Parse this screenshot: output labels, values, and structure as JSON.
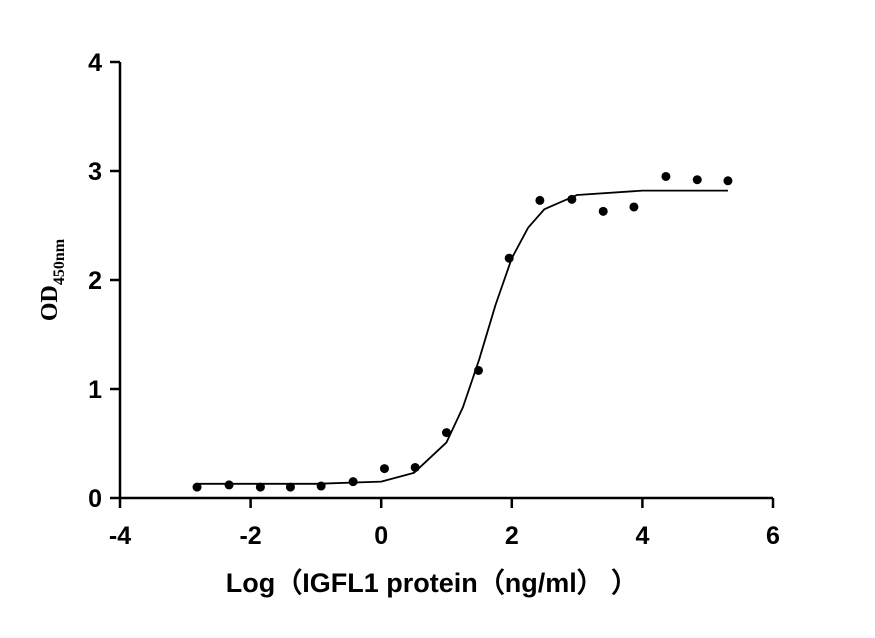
{
  "chart_data": {
    "type": "scatter",
    "y_label": "OD",
    "y_label_sub": "450nm",
    "x_label": "Log（IGFL1 protein（ng/ml） ）",
    "xlim": [
      -4,
      6
    ],
    "xticks": [
      -4,
      -2,
      0,
      2,
      4,
      6
    ],
    "ylim": [
      0,
      4
    ],
    "yticks": [
      0,
      1,
      2,
      3,
      4
    ],
    "series": [
      {
        "type": "scatter",
        "color": "#000000",
        "x": [
          -2.82,
          -2.33,
          -1.85,
          -1.39,
          -0.92,
          -0.43,
          0.05,
          0.52,
          1.0,
          1.49,
          1.96,
          2.43,
          2.92,
          3.4,
          3.87,
          4.36,
          4.84,
          5.31
        ],
        "values": [
          0.1,
          0.12,
          0.1,
          0.1,
          0.11,
          0.15,
          0.27,
          0.28,
          0.6,
          1.17,
          2.2,
          2.73,
          2.74,
          2.63,
          2.67,
          2.95,
          2.92,
          2.91
        ]
      },
      {
        "type": "line",
        "color": "#000000",
        "x": [
          -2.82,
          -2,
          -1,
          0,
          0.5,
          1,
          1.25,
          1.5,
          1.75,
          2,
          2.25,
          2.5,
          3,
          4,
          5.31
        ],
        "values": [
          0.13,
          0.13,
          0.13,
          0.15,
          0.23,
          0.51,
          0.83,
          1.27,
          1.77,
          2.2,
          2.48,
          2.65,
          2.78,
          2.82,
          2.82
        ]
      }
    ]
  }
}
